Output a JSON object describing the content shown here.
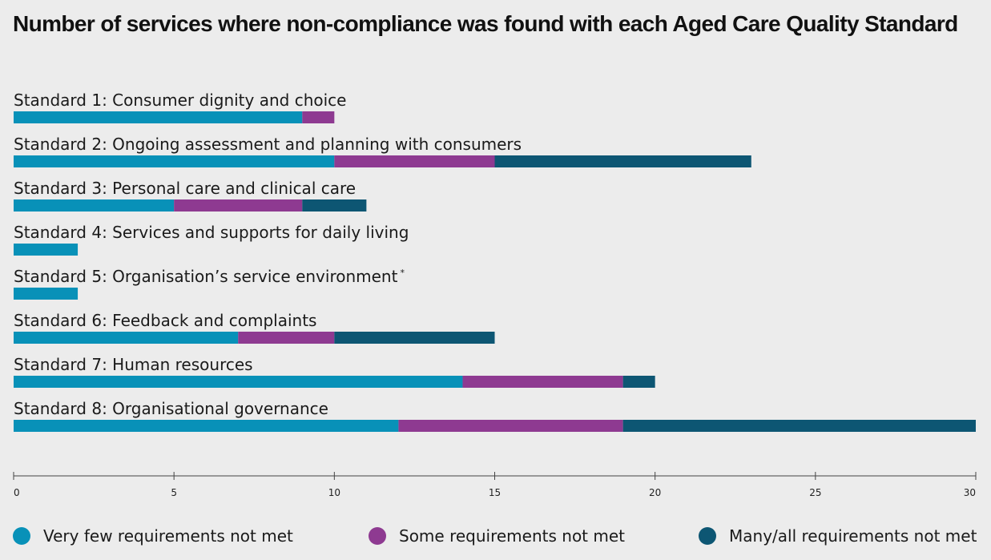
{
  "title": "Number of services where non-compliance was found with each Aged Care Quality Standard",
  "colors": {
    "very_few": "#0891b8",
    "some": "#8e3a91",
    "many": "#0d5673"
  },
  "legend": [
    {
      "label": "Very few requirements not met",
      "color": "#0891b8"
    },
    {
      "label": "Some requirements not met",
      "color": "#8e3a91"
    },
    {
      "label": "Many/all requirements not met",
      "color": "#0d5673"
    }
  ],
  "chart_data": {
    "type": "bar",
    "orientation": "horizontal",
    "stacked": true,
    "title": "Number of services where non-compliance was found with each Aged Care Quality Standard",
    "categories": [
      "Standard 1: Consumer dignity and choice",
      "Standard 2: Ongoing assessment and planning with consumers",
      "Standard 3: Personal care and clinical care",
      "Standard 4: Services and supports for daily living",
      "Standard 5: Organisation’s service environment",
      "Standard 6: Feedback and complaints",
      "Standard 7: Human resources",
      "Standard 8: Organisational governance"
    ],
    "category_footnotes": [
      "",
      "",
      "",
      "",
      "*",
      "",
      "",
      ""
    ],
    "series": [
      {
        "name": "Very few requirements not met",
        "values": [
          9,
          10,
          5,
          2,
          2,
          7,
          14,
          12
        ]
      },
      {
        "name": "Some requirements not met",
        "values": [
          1,
          5,
          4,
          0,
          0,
          3,
          5,
          7
        ]
      },
      {
        "name": "Many/all requirements not met",
        "values": [
          0,
          8,
          2,
          0,
          0,
          5,
          1,
          11
        ]
      }
    ],
    "xlim": [
      0,
      30
    ],
    "xticks": [
      0,
      5,
      10,
      15,
      20,
      25,
      30
    ],
    "xlabel": "",
    "ylabel": "",
    "grid": false,
    "legend_position": "bottom"
  }
}
